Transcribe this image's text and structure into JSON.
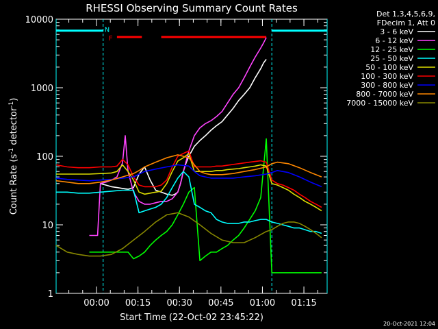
{
  "chart_data": {
    "type": "line",
    "title": "RHESSI Observing Summary Count Rates",
    "xlabel": "Start Time (22-Oct-02 23:45:22)",
    "ylabel_main": "Count Rate (s",
    "ylabel_sup1": "-1",
    "ylabel_mid": " detector",
    "ylabel_sup2": "-1",
    "ylabel_end": ")",
    "x_unit": "minutes since start",
    "xlim": [
      0,
      98
    ],
    "ylim": [
      1,
      10000
    ],
    "yscale": "log",
    "x_ticks": [
      {
        "x": 14.6,
        "label": "00:00"
      },
      {
        "x": 29.6,
        "label": "00:15"
      },
      {
        "x": 44.6,
        "label": "00:30"
      },
      {
        "x": 59.6,
        "label": "00:45"
      },
      {
        "x": 74.6,
        "label": "01:00"
      },
      {
        "x": 89.6,
        "label": "01:15"
      }
    ],
    "y_ticks": [
      {
        "y": 1,
        "label": "1"
      },
      {
        "y": 10,
        "label": "10"
      },
      {
        "y": 100,
        "label": "100"
      },
      {
        "y": 1000,
        "label": "1000"
      },
      {
        "y": 10000,
        "label": "10000"
      }
    ],
    "legend_header": [
      "Det 1,3,4,5,6,9,",
      "FDecim 1, Att 0"
    ],
    "series": [
      {
        "name": "3 - 6 keV",
        "color": "#ffffff",
        "x": [
          16,
          18,
          20,
          22,
          24,
          26,
          28,
          30,
          32,
          34,
          36,
          38,
          40,
          42,
          43,
          44,
          45,
          46,
          47,
          48,
          50,
          52,
          54,
          56,
          58,
          60,
          62,
          64,
          66,
          68,
          70,
          72,
          74,
          75,
          76
        ],
        "y": [
          40,
          38,
          36,
          35,
          34,
          33,
          35,
          55,
          70,
          45,
          32,
          30,
          28,
          27,
          28,
          30,
          40,
          60,
          80,
          100,
          140,
          170,
          200,
          240,
          280,
          320,
          400,
          500,
          650,
          800,
          1000,
          1400,
          1900,
          2300,
          2600
        ]
      },
      {
        "name": "6 - 12 keV",
        "color": "#ff44ff",
        "x": [
          12,
          14,
          15,
          16,
          18,
          20,
          22,
          24,
          25,
          26,
          28,
          30,
          32,
          34,
          36,
          38,
          40,
          42,
          44,
          45,
          46,
          48,
          50,
          52,
          54,
          56,
          58,
          60,
          62,
          64,
          66,
          68,
          70,
          72,
          74,
          75,
          76
        ],
        "y": [
          7,
          7,
          7,
          40,
          42,
          45,
          50,
          80,
          200,
          60,
          30,
          22,
          20,
          20,
          21,
          22,
          22,
          24,
          30,
          40,
          60,
          120,
          200,
          260,
          300,
          330,
          380,
          450,
          600,
          800,
          1000,
          1400,
          2000,
          2800,
          3800,
          4500,
          5400
        ]
      },
      {
        "name": "12 - 25 keV",
        "color": "#00ff00",
        "x": [
          12,
          14,
          16,
          18,
          20,
          22,
          24,
          26,
          28,
          30,
          32,
          34,
          36,
          38,
          40,
          42,
          44,
          46,
          48,
          50,
          52,
          54,
          56,
          58,
          60,
          62,
          64,
          66,
          68,
          70,
          72,
          74,
          76,
          78,
          80,
          82,
          84,
          86,
          88,
          90,
          92,
          94,
          96
        ],
        "y": [
          4,
          4,
          4,
          4,
          4,
          4,
          4,
          4,
          3.2,
          3.5,
          4,
          5,
          6,
          7,
          8,
          10,
          14,
          20,
          30,
          35,
          3,
          3.5,
          4,
          4,
          4.5,
          5,
          6,
          7,
          9,
          12,
          16,
          25,
          180,
          2,
          2,
          2,
          2,
          2,
          2,
          2,
          2,
          2,
          2
        ]
      },
      {
        "name": "25 - 50 keV",
        "color": "#00ffff",
        "x": [
          0,
          4,
          8,
          12,
          16,
          20,
          24,
          28,
          30,
          32,
          34,
          36,
          38,
          40,
          42,
          44,
          46,
          48,
          50,
          52,
          54,
          56,
          58,
          60,
          62,
          64,
          66,
          68,
          70,
          72,
          74,
          76,
          78,
          80,
          82,
          84,
          86,
          88,
          90,
          92,
          94,
          96
        ],
        "y": [
          30,
          30,
          29,
          29,
          30,
          31,
          32,
          32,
          15,
          16,
          17,
          18,
          20,
          25,
          35,
          48,
          60,
          50,
          20,
          18,
          16,
          15,
          12,
          11,
          10.5,
          10.5,
          10.5,
          11,
          11,
          11.5,
          12,
          12,
          11,
          10.5,
          10,
          9.5,
          9,
          9,
          8.5,
          8,
          8,
          7.5
        ]
      },
      {
        "name": "50 - 100 keV",
        "color": "#dddd00",
        "x": [
          0,
          4,
          8,
          12,
          16,
          20,
          22,
          24,
          26,
          28,
          30,
          32,
          34,
          36,
          38,
          40,
          42,
          44,
          46,
          48,
          50,
          52,
          54,
          56,
          58,
          60,
          62,
          64,
          66,
          68,
          70,
          72,
          74,
          76,
          78,
          80,
          82,
          84,
          86,
          88,
          90,
          92,
          94,
          96
        ],
        "y": [
          55,
          55,
          55,
          55,
          56,
          57,
          60,
          75,
          60,
          45,
          30,
          28,
          29,
          30,
          31,
          40,
          60,
          85,
          95,
          110,
          60,
          60,
          60,
          60,
          62,
          62,
          64,
          65,
          66,
          68,
          70,
          72,
          75,
          72,
          40,
          38,
          35,
          32,
          28,
          25,
          22,
          20,
          18,
          16
        ]
      },
      {
        "name": "100 - 300 keV",
        "color": "#ff0000",
        "x": [
          0,
          4,
          8,
          12,
          16,
          20,
          22,
          24,
          26,
          28,
          30,
          32,
          34,
          36,
          38,
          40,
          42,
          44,
          46,
          48,
          50,
          52,
          54,
          56,
          58,
          60,
          62,
          64,
          66,
          68,
          70,
          72,
          74,
          76,
          78,
          80,
          82,
          84,
          86,
          88,
          90,
          92,
          94,
          96
        ],
        "y": [
          75,
          70,
          68,
          68,
          70,
          70,
          72,
          90,
          75,
          50,
          38,
          36,
          36,
          36,
          38,
          45,
          70,
          100,
          110,
          120,
          70,
          70,
          70,
          70,
          72,
          72,
          74,
          76,
          78,
          80,
          82,
          84,
          86,
          82,
          45,
          40,
          38,
          35,
          32,
          28,
          25,
          22,
          20,
          18
        ]
      },
      {
        "name": "300 - 800 keV",
        "color": "#0000ff",
        "x": [
          0,
          4,
          8,
          12,
          16,
          20,
          24,
          28,
          30,
          32,
          36,
          40,
          44,
          48,
          50,
          52,
          54,
          56,
          60,
          64,
          68,
          72,
          76,
          78,
          80,
          84,
          88,
          92,
          96
        ],
        "y": [
          48,
          46,
          45,
          44,
          45,
          46,
          48,
          50,
          55,
          60,
          65,
          70,
          75,
          72,
          60,
          52,
          50,
          48,
          48,
          48,
          50,
          52,
          55,
          58,
          62,
          58,
          50,
          42,
          36
        ]
      },
      {
        "name": "800 - 7000 keV",
        "color": "#ff8800",
        "x": [
          0,
          4,
          8,
          12,
          16,
          20,
          24,
          28,
          30,
          32,
          36,
          40,
          44,
          48,
          50,
          52,
          54,
          56,
          60,
          64,
          68,
          72,
          76,
          78,
          80,
          84,
          88,
          92,
          96
        ],
        "y": [
          44,
          42,
          40,
          40,
          42,
          45,
          50,
          56,
          62,
          70,
          82,
          95,
          105,
          95,
          75,
          60,
          56,
          54,
          54,
          56,
          60,
          64,
          70,
          78,
          82,
          78,
          68,
          58,
          50
        ]
      },
      {
        "name": "7000 - 15000 keV",
        "color": "#888800",
        "x": [
          0,
          4,
          8,
          12,
          16,
          20,
          24,
          28,
          32,
          36,
          40,
          44,
          48,
          52,
          56,
          60,
          64,
          68,
          72,
          76,
          78,
          80,
          82,
          84,
          86,
          88,
          90,
          92,
          94,
          96
        ],
        "y": [
          5,
          4,
          3.7,
          3.5,
          3.5,
          3.7,
          4.5,
          6,
          8,
          11,
          14,
          15,
          13,
          10,
          7.5,
          6,
          5.5,
          5.5,
          6.5,
          8,
          8.5,
          9.5,
          10.5,
          11,
          11,
          10.5,
          9.5,
          8.5,
          7.5,
          6.5
        ]
      }
    ],
    "flare_flag": {
      "label": "F",
      "color": "#ff0000",
      "segments": [
        [
          22,
          31
        ],
        [
          38,
          76
        ]
      ],
      "y": 5500
    },
    "night_flag": {
      "label": "N",
      "color": "#00ffff",
      "segments": [
        [
          0,
          17
        ],
        [
          78,
          98
        ]
      ],
      "y": 6800,
      "edges": [
        0,
        17,
        78,
        98
      ]
    },
    "timestamp": "20-Oct-2021 12:04"
  }
}
